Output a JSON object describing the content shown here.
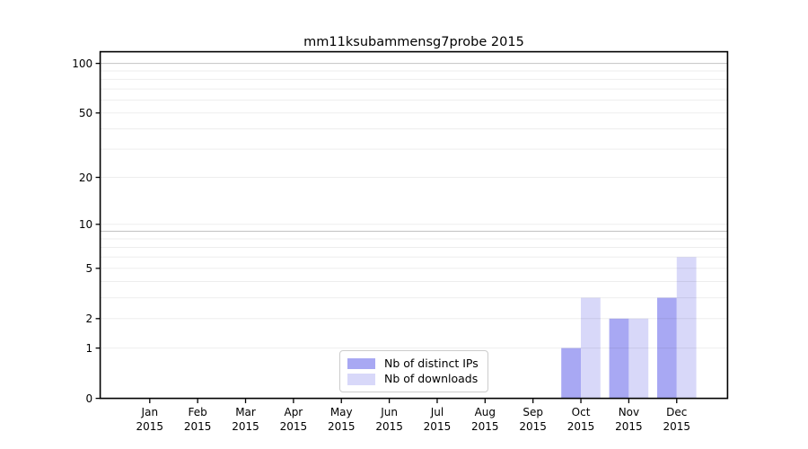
{
  "figure": {
    "title": "mm11ksubammensg7probe 2015",
    "background": "#ffffff"
  },
  "chart_data": {
    "type": "bar",
    "title": "mm11ksubammensg7probe 2015",
    "year": "2015",
    "categories": [
      "Jan",
      "Feb",
      "Mar",
      "Apr",
      "May",
      "Jun",
      "Jul",
      "Aug",
      "Sep",
      "Oct",
      "Nov",
      "Dec"
    ],
    "series": [
      {
        "name": "Nb of distinct IPs",
        "color": "#a8a8f3",
        "values": [
          0,
          0,
          0,
          0,
          0,
          0,
          0,
          0,
          0,
          1,
          2,
          3
        ]
      },
      {
        "name": "Nb of downloads",
        "color": "#d8d8f9",
        "values": [
          0,
          0,
          0,
          0,
          0,
          0,
          0,
          0,
          0,
          3,
          2,
          6
        ]
      }
    ],
    "y_axis": {
      "scale": "log10(1+y)",
      "ticks": [
        0,
        1,
        2,
        5,
        10,
        20,
        50,
        100
      ],
      "minor_gridlines": [
        1,
        2,
        3,
        4,
        5,
        6,
        7,
        8,
        10,
        20,
        30,
        40,
        50,
        60,
        70,
        80,
        90
      ],
      "major_gridlines": [
        9,
        100
      ],
      "range": [
        0,
        115
      ]
    },
    "x_axis": {
      "tick_first_line": "month",
      "tick_second_line": "2015"
    },
    "legend": {
      "position": "lower center",
      "entries": [
        "Nb of distinct IPs",
        "Nb of downloads"
      ]
    },
    "grid": "both, drawn over bars",
    "plot_background": "#ffffff"
  }
}
